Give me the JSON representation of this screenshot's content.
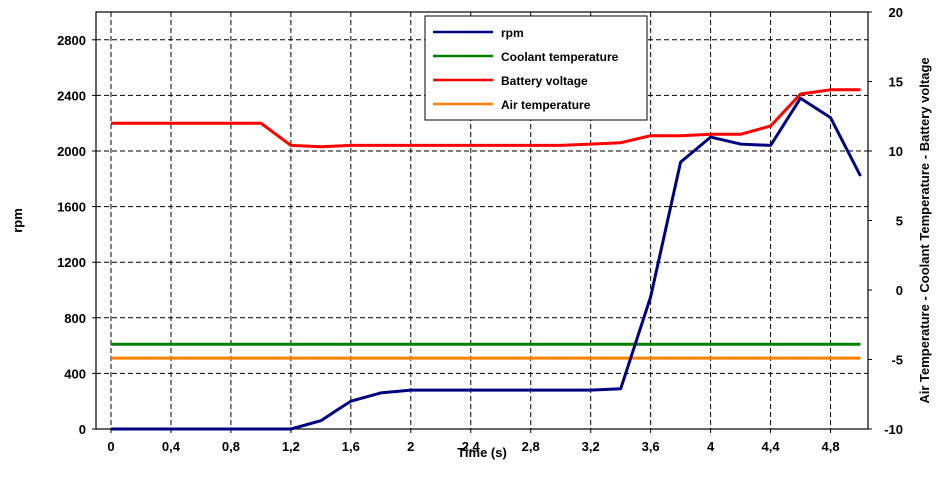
{
  "chart_data": {
    "type": "line",
    "xlabel": "Time (s)",
    "ylabel": "rpm",
    "y2label": "Air Temperature - Coolant Temperature - Battery voltage",
    "xlim": [
      -0.1,
      5.05
    ],
    "ylim": [
      0,
      3000
    ],
    "y2lim": [
      -10,
      20
    ],
    "x_ticks": [
      "0",
      "0,4",
      "0,8",
      "1,2",
      "1,6",
      "2",
      "2,4",
      "2,8",
      "3,2",
      "3,6",
      "4",
      "4,4",
      "4,8"
    ],
    "x_tick_values": [
      0,
      0.4,
      0.8,
      1.2,
      1.6,
      2.0,
      2.4,
      2.8,
      3.2,
      3.6,
      4.0,
      4.4,
      4.8
    ],
    "y_ticks": [
      "0",
      "400",
      "800",
      "1200",
      "1600",
      "2000",
      "2400",
      "2800"
    ],
    "y_tick_values": [
      0,
      400,
      800,
      1200,
      1600,
      2000,
      2400,
      2800
    ],
    "y2_ticks": [
      "-10",
      "-5",
      "0",
      "5",
      "10",
      "15",
      "20"
    ],
    "y2_tick_values": [
      -10,
      -5,
      0,
      5,
      10,
      15,
      20
    ],
    "grid": true,
    "legend_position": "top-right",
    "series": [
      {
        "name": "rpm",
        "axis": "left",
        "color": "#000080",
        "x": [
          0,
          0.2,
          0.4,
          0.6,
          0.8,
          1.0,
          1.2,
          1.4,
          1.5,
          1.6,
          1.8,
          2.0,
          2.4,
          2.8,
          3.2,
          3.4,
          3.6,
          3.8,
          4.0,
          4.2,
          4.4,
          4.6,
          4.8,
          5.0
        ],
        "y": [
          0,
          0,
          0,
          0,
          0,
          0,
          0,
          60,
          130,
          200,
          260,
          280,
          280,
          280,
          280,
          290,
          950,
          1920,
          2100,
          2050,
          2040,
          2380,
          2240,
          1820
        ]
      },
      {
        "name": "Coolant temperature",
        "axis": "right",
        "color": "#008000",
        "x": [
          0,
          5.0
        ],
        "y": [
          -3.9,
          -3.9
        ]
      },
      {
        "name": "Battery voltage",
        "axis": "right",
        "color": "#ff0000",
        "x": [
          0,
          0.2,
          0.4,
          0.6,
          0.8,
          1.0,
          1.2,
          1.4,
          1.6,
          1.8,
          2.0,
          2.4,
          2.8,
          3.0,
          3.2,
          3.4,
          3.6,
          3.8,
          4.0,
          4.2,
          4.4,
          4.6,
          4.8,
          5.0
        ],
        "y": [
          12.0,
          12.0,
          12.0,
          12.0,
          12.0,
          12.0,
          10.4,
          10.3,
          10.4,
          10.4,
          10.4,
          10.4,
          10.4,
          10.4,
          10.5,
          10.6,
          11.1,
          11.1,
          11.2,
          11.2,
          11.8,
          14.1,
          14.4,
          14.4
        ]
      },
      {
        "name": "Air temperature",
        "axis": "right",
        "color": "#ff8000",
        "x": [
          0,
          5.0
        ],
        "y": [
          -4.9,
          -4.9
        ]
      }
    ]
  }
}
